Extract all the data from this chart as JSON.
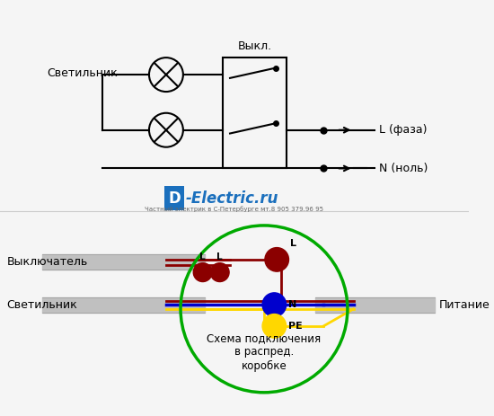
{
  "bg_color": "#f5f5f5",
  "L_wire_color": "#8B0000",
  "N_wire_color": "#0000CD",
  "PE_wire_color": "#FFD700",
  "circle_color": "#00AA00",
  "dot_L_color": "#8B0000",
  "dot_N_color": "#0000CD",
  "dot_PE_color": "#FFD700",
  "cable_gray": "#c0c0c0",
  "label_svetilnik": "Светильник",
  "label_vykl": "Выкл.",
  "label_L": "L (фаза)",
  "label_N": "N (ноль)",
  "label_vykluchatel": "Выключатель",
  "label_svetilnik2": "Светильник",
  "label_pitanie": "Питание",
  "label_schema": "Схема подключения\nв распред.\nкоробке",
  "label_D": "D",
  "label_electric": "-Electric.ru",
  "label_sub": "Частный электрик в С-Петербурге мт.8 905 379.96 95"
}
